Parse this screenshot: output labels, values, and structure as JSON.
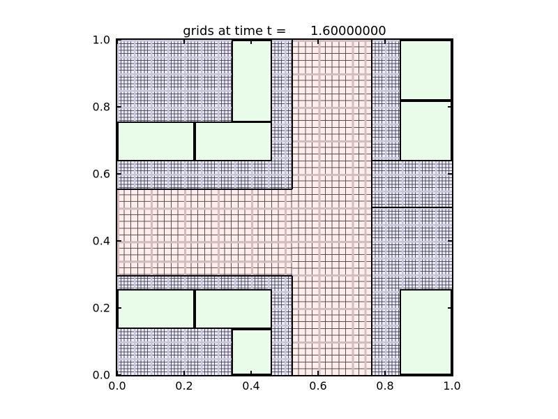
{
  "plot": {
    "title": "grids at time t =      1.60000000"
  },
  "chart_data": {
    "type": "heatmap",
    "title": "grids at time t =      1.60000000",
    "xlabel": "",
    "ylabel": "",
    "xlim": [
      0.0,
      1.0
    ],
    "ylim": [
      0.0,
      1.0
    ],
    "x_ticks": [
      "0.0",
      "0.2",
      "0.4",
      "0.6",
      "0.8",
      "1.0"
    ],
    "y_ticks": [
      "0.0",
      "0.2",
      "0.4",
      "0.6",
      "0.8",
      "1.0"
    ],
    "legend": "none",
    "grid_levels": {
      "level1_fill": "#e9fbe9",
      "level2_fill": "#fdeeeb",
      "level2_line": "#5c4f50",
      "level2_coarse_line": "#d5bcc0",
      "level2_spacing": 0.02,
      "level3_fill": "#ecebf6",
      "level3_line": "#4e4e60",
      "level3_coarse_line": "#c7c7db",
      "level3_spacing": 0.01,
      "outline_color": "#000000"
    },
    "fine_blue_region": {
      "x": 0.0,
      "y": 0.0,
      "w": 1.0,
      "h": 1.0
    },
    "pink_patches": [
      {
        "cls": "pink-column",
        "x": 0.522,
        "y": 0.0,
        "w": 0.238,
        "h": 1.0
      },
      {
        "cls": "pink-band",
        "x": 0.0,
        "y": 0.295,
        "w": 0.522,
        "h": 0.26
      }
    ],
    "green_patches": [
      {
        "x": 0.342,
        "y": 0.755,
        "w": 0.121,
        "h": 0.245
      },
      {
        "x": 0.0,
        "y": 0.6375,
        "w": 0.231,
        "h": 0.118
      },
      {
        "x": 0.231,
        "y": 0.6375,
        "w": 0.232,
        "h": 0.118
      },
      {
        "x": 0.843,
        "y": 0.818,
        "w": 0.157,
        "h": 0.182
      },
      {
        "x": 0.843,
        "y": 0.6375,
        "w": 0.157,
        "h": 0.1805
      },
      {
        "x": 0.0,
        "y": 0.1375,
        "w": 0.231,
        "h": 0.118
      },
      {
        "x": 0.231,
        "y": 0.1375,
        "w": 0.232,
        "h": 0.118
      },
      {
        "x": 0.342,
        "y": 0.0,
        "w": 0.121,
        "h": 0.1375
      },
      {
        "x": 0.843,
        "y": 0.0,
        "w": 0.157,
        "h": 0.2555
      }
    ],
    "boundary_lines": [
      {
        "o": "v",
        "at": 0.522,
        "from": 0.555,
        "to": 1.0
      },
      {
        "o": "v",
        "at": 0.522,
        "from": 0.0,
        "to": 0.295
      },
      {
        "o": "v",
        "at": 0.76,
        "from": 0.0,
        "to": 1.0
      },
      {
        "o": "h",
        "at": 0.555,
        "from": 0.0,
        "to": 0.522
      },
      {
        "o": "h",
        "at": 0.295,
        "from": 0.0,
        "to": 0.522
      },
      {
        "o": "h",
        "at": 0.64,
        "from": 0.76,
        "to": 1.0
      },
      {
        "o": "h",
        "at": 0.5,
        "from": 0.76,
        "to": 1.0
      }
    ]
  }
}
